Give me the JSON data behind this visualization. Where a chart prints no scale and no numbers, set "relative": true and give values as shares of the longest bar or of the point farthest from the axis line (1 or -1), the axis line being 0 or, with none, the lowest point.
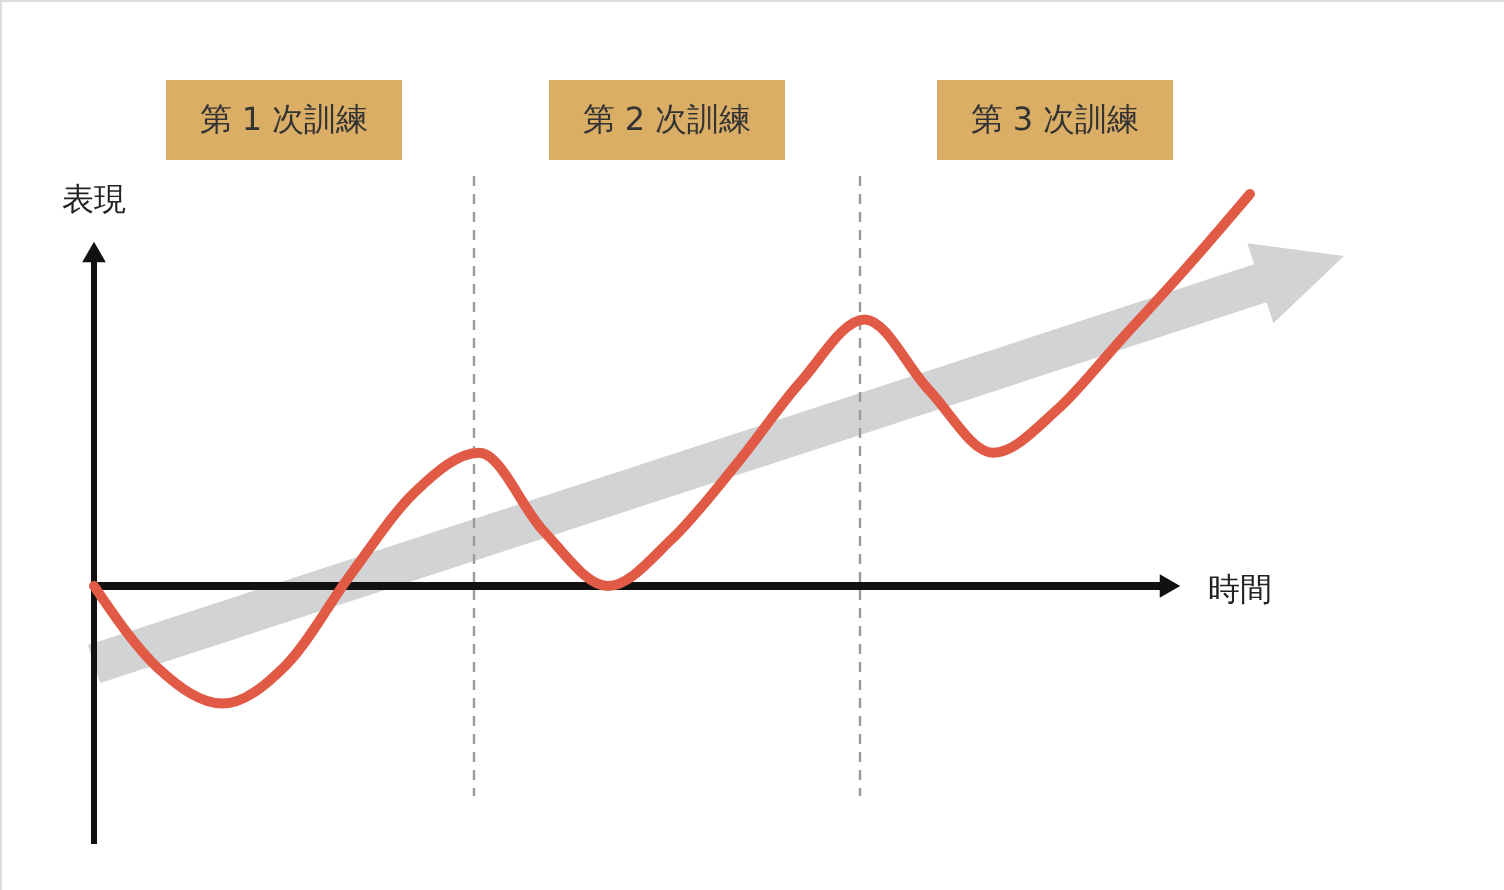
{
  "chart_data": {
    "type": "line",
    "relative": true,
    "xlabel": "時間",
    "ylabel": "表現",
    "color": "#e05a45",
    "line_style": "solid",
    "categories": [
      null,
      null,
      null,
      null,
      null,
      null,
      null,
      null,
      null,
      null,
      null,
      null,
      null,
      null,
      null,
      null,
      null,
      null,
      null
    ],
    "values": [
      0,
      -0.21,
      -0.3,
      -0.2,
      0.03,
      0.24,
      0.34,
      0.14,
      0,
      0.12,
      0.31,
      0.52,
      0.68,
      0.5,
      0.34,
      0.45,
      0.63,
      0.81,
      1
    ],
    "annotations": [
      "第 1 次訓練",
      "第 2 次訓練",
      "第 3 次訓練"
    ]
  }
}
